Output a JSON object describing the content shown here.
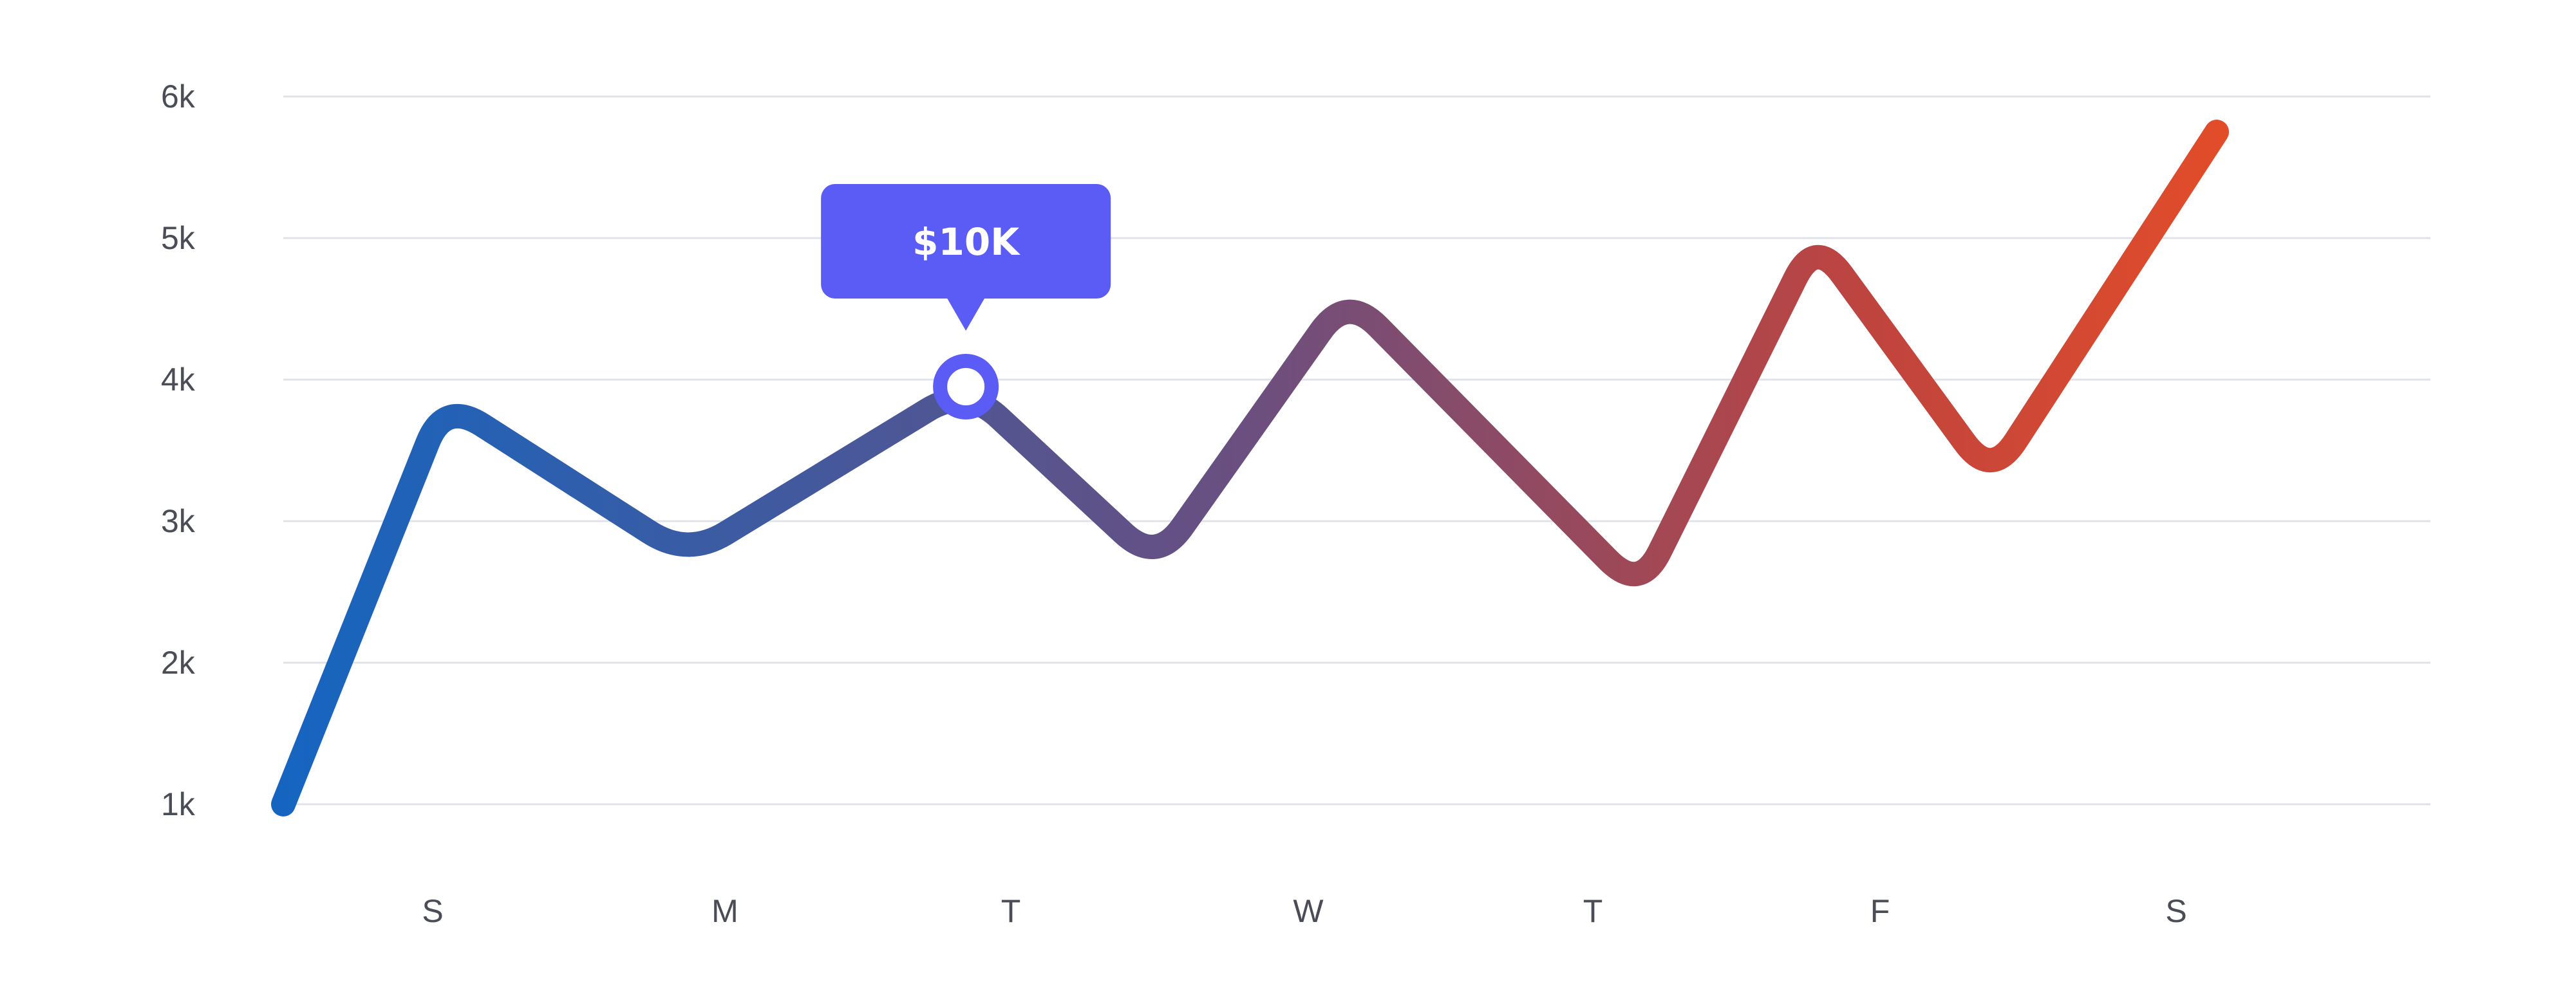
{
  "chart_data": {
    "type": "line",
    "title": "",
    "xlabel": "",
    "ylabel": "",
    "yticks": [
      "1k",
      "2k",
      "3k",
      "4k",
      "5k",
      "6k"
    ],
    "ylim": [
      1000,
      6000
    ],
    "grid": true,
    "categories": [
      "S",
      "M",
      "T",
      "W",
      "T",
      "F",
      "S"
    ],
    "series": [
      {
        "x": [
          0,
          0.55,
          1.38,
          2.33,
          2.98,
          3.63,
          4.63,
          5.23,
          5.83,
          6.6,
          7.13
        ],
        "values": [
          1000,
          3850,
          2750,
          3950,
          2700,
          4600,
          2500,
          5000,
          3300,
          5750,
          null
        ]
      }
    ],
    "highlight": {
      "index": 3,
      "label": "$10K"
    },
    "colors": {
      "line_start": "#1565c0",
      "line_end": "#f4511e",
      "tooltip": "#5b5bf5",
      "grid": "#dfe3e8"
    }
  }
}
